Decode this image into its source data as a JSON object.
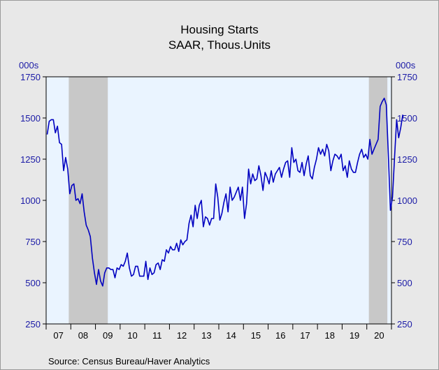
{
  "chart_data": {
    "type": "line",
    "title": "Housing Starts",
    "subtitle": "SAAR, Thous.Units",
    "ylabel_left": "000s",
    "ylabel_right": "000s",
    "ylim": [
      250,
      1750
    ],
    "yticks": [
      250,
      500,
      750,
      1000,
      1250,
      1500,
      1750
    ],
    "xlim": [
      "2007-01",
      "2020-12"
    ],
    "xticks": [
      {
        "label": "07",
        "year": 2007
      },
      {
        "label": "08",
        "year": 2008
      },
      {
        "label": "09",
        "year": 2009
      },
      {
        "label": "10",
        "year": 2010
      },
      {
        "label": "11",
        "year": 2011
      },
      {
        "label": "12",
        "year": 2012
      },
      {
        "label": "13",
        "year": 2013
      },
      {
        "label": "14",
        "year": 2014
      },
      {
        "label": "15",
        "year": 2015
      },
      {
        "label": "16",
        "year": 2016
      },
      {
        "label": "17",
        "year": 2017
      },
      {
        "label": "18",
        "year": 2018
      },
      {
        "label": "19",
        "year": 2019
      },
      {
        "label": "20",
        "year": 2020
      }
    ],
    "recessions": [
      {
        "start": "2007-12",
        "end": "2009-06"
      },
      {
        "start": "2020-02",
        "end": "2020-10"
      }
    ],
    "grid": false,
    "colors": {
      "line": "#0000c0",
      "plot_bg": "#eaf4ff",
      "recession": "#c8c8c8",
      "axis_text": "#1a1aa6"
    },
    "series": [
      {
        "start": "2007-01",
        "values": [
          1400,
          1480,
          1490,
          1490,
          1410,
          1450,
          1350,
          1340,
          1180,
          1260,
          1190,
          1040,
          1090,
          1100,
          1000,
          1010,
          980,
          1040,
          930,
          850,
          820,
          780,
          650,
          560,
          490,
          580,
          510,
          480,
          560,
          590,
          590,
          580,
          580,
          530,
          590,
          580,
          610,
          600,
          630,
          680,
          590,
          540,
          550,
          600,
          600,
          540,
          540,
          540,
          630,
          520,
          590,
          550,
          560,
          610,
          620,
          580,
          640,
          630,
          700,
          680,
          720,
          700,
          700,
          740,
          690,
          760,
          730,
          750,
          760,
          860,
          910,
          840,
          970,
          890,
          970,
          1000,
          840,
          900,
          890,
          850,
          890,
          890,
          1100,
          1020,
          880,
          920,
          990,
          1040,
          930,
          1080,
          1000,
          1020,
          1050,
          1080,
          1000,
          1080,
          890,
          980,
          1190,
          1100,
          1160,
          1120,
          1130,
          1210,
          1150,
          1060,
          1170,
          1140,
          1100,
          1180,
          1110,
          1160,
          1180,
          1200,
          1140,
          1190,
          1230,
          1240,
          1140,
          1320,
          1230,
          1250,
          1180,
          1170,
          1230,
          1150,
          1220,
          1270,
          1150,
          1130,
          1200,
          1250,
          1320,
          1280,
          1310,
          1270,
          1340,
          1300,
          1180,
          1240,
          1280,
          1270,
          1250,
          1280,
          1180,
          1210,
          1140,
          1240,
          1190,
          1170,
          1170,
          1230,
          1280,
          1310,
          1260,
          1280,
          1250,
          1370,
          1280,
          1310,
          1340,
          1370,
          1570,
          1600,
          1620,
          1580,
          1270,
          940,
          1020,
          1260,
          1490,
          1380,
          1440,
          1520
        ]
      }
    ],
    "source": "Source:   Census Bureau/Haver Analytics"
  }
}
